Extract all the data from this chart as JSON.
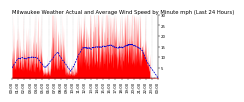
{
  "title": "Milwaukee Weather Actual and Average Wind Speed by Minute mph (Last 24 Hours)",
  "ylim": [
    0,
    30
  ],
  "yticks": [
    5,
    10,
    15,
    20,
    25,
    30
  ],
  "background_color": "#ffffff",
  "bar_color": "#ff0000",
  "line_color": "#0000cc",
  "grid_color": "#888888",
  "num_points": 1440,
  "seed": 99,
  "title_fontsize": 3.8,
  "tick_fontsize": 2.8
}
